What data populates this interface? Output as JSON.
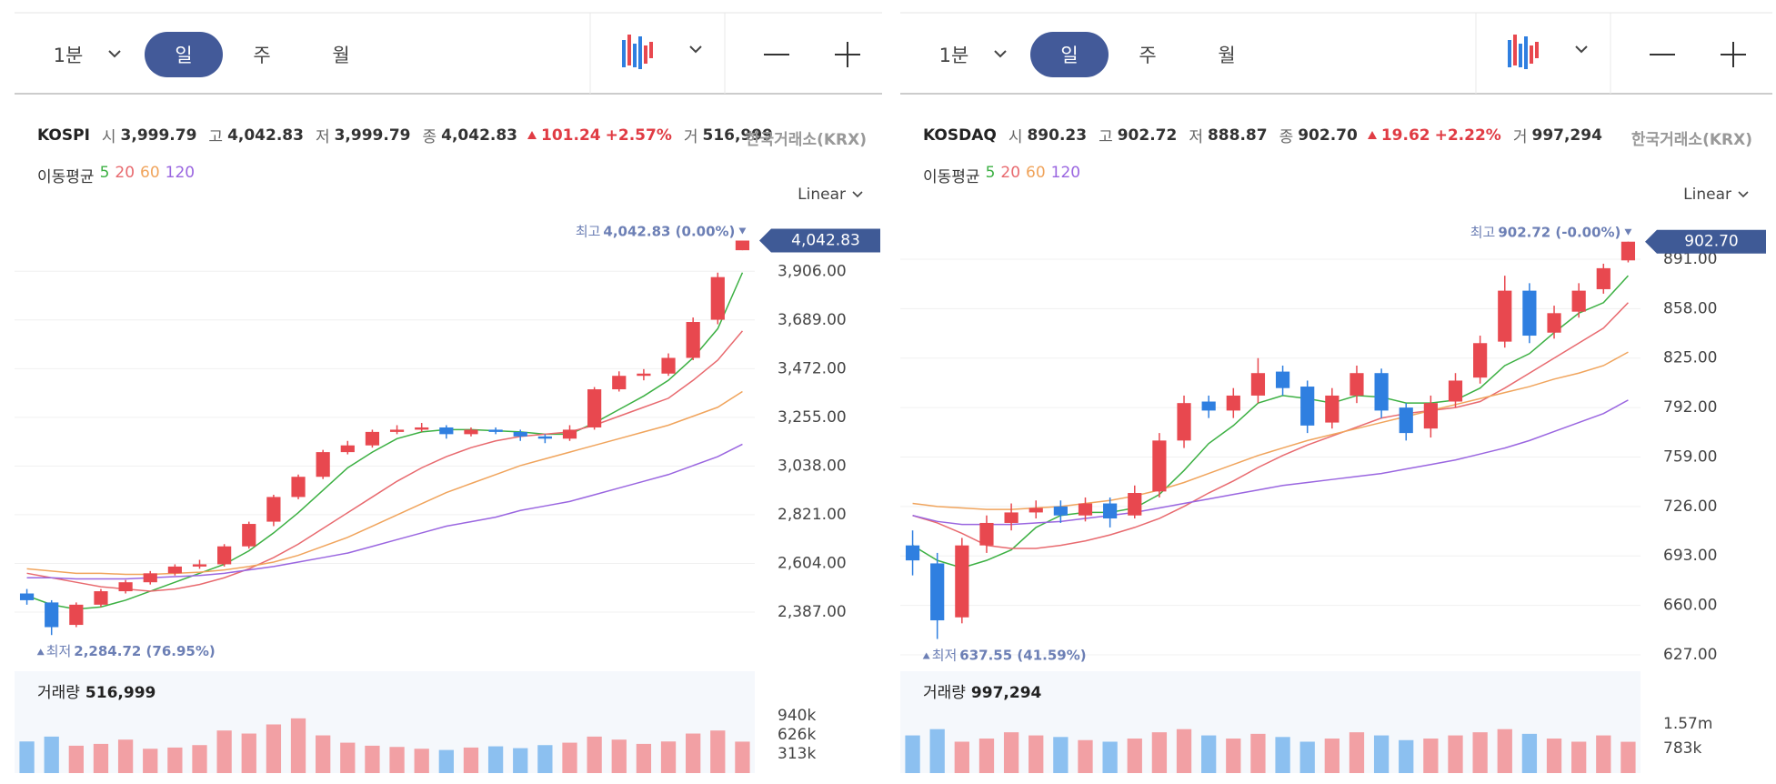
{
  "chart_data": [
    {
      "type": "candlestick",
      "title": "KOSPI",
      "toolbar": [
        "1분",
        "일",
        "주",
        "월"
      ],
      "toolbar_selected": 1,
      "quote": [
        {
          "label": "시",
          "value": "3,999.79"
        },
        {
          "label": "고",
          "value": "4,042.83"
        },
        {
          "label": "저",
          "value": "3,999.79"
        },
        {
          "label": "종",
          "value": "4,042.83"
        }
      ],
      "change": {
        "value": "101.24",
        "percent": "+2.57%"
      },
      "volume_quote": {
        "label": "거",
        "value": "516,999"
      },
      "exchange": "한국거래소(KRX)",
      "ma_title": "이동평균",
      "scale_label": "Linear",
      "high_label": "최고",
      "high_text": "4,042.83 (0.00%)",
      "low_label": "최저",
      "low_text": "2,284.72 (76.95%)",
      "last_price_label": "4,042.83",
      "up_color": "#e8484f",
      "down_color": "#2f7fe0",
      "ylim": [
        2160,
        4130
      ],
      "yticks": [
        {
          "value": 2387,
          "label": "2,387.00"
        },
        {
          "value": 2604,
          "label": "2,604.00"
        },
        {
          "value": 2821,
          "label": "2,821.00"
        },
        {
          "value": 3038,
          "label": "3,038.00"
        },
        {
          "value": 3255,
          "label": "3,255.00"
        },
        {
          "value": 3472,
          "label": "3,472.00"
        },
        {
          "value": 3689,
          "label": "3,689.00"
        },
        {
          "value": 3906,
          "label": "3,906.00"
        }
      ],
      "grid": true,
      "open": [
        2470,
        2430,
        2330,
        2420,
        2480,
        2520,
        2560,
        2590,
        2600,
        2680,
        2790,
        2900,
        2990,
        3100,
        3130,
        3190,
        3200,
        3210,
        3180,
        3200,
        3190,
        3170,
        3160,
        3210,
        3380,
        3440,
        3450,
        3520,
        3690,
        3999.79
      ],
      "high": [
        2490,
        2440,
        2430,
        2490,
        2530,
        2570,
        2600,
        2620,
        2690,
        2790,
        2910,
        3000,
        3110,
        3150,
        3200,
        3220,
        3230,
        3220,
        3210,
        3210,
        3200,
        3180,
        3220,
        3390,
        3460,
        3470,
        3540,
        3700,
        3900,
        4042.83
      ],
      "low": [
        2420,
        2284.72,
        2320,
        2410,
        2470,
        2510,
        2550,
        2580,
        2590,
        2670,
        2770,
        2890,
        2980,
        3090,
        3120,
        3180,
        3190,
        3160,
        3170,
        3180,
        3150,
        3140,
        3150,
        3200,
        3370,
        3420,
        3440,
        3510,
        3670,
        3999.79
      ],
      "close": [
        2440,
        2320,
        2420,
        2480,
        2520,
        2560,
        2590,
        2600,
        2680,
        2780,
        2900,
        2990,
        3100,
        3130,
        3190,
        3200,
        3210,
        3180,
        3200,
        3190,
        3170,
        3160,
        3200,
        3380,
        3440,
        3450,
        3520,
        3680,
        3880,
        4042.83
      ],
      "ma_series": [
        {
          "name": "5",
          "color": "#3cb043",
          "values": [
            2460,
            2420,
            2400,
            2410,
            2440,
            2480,
            2520,
            2560,
            2600,
            2660,
            2740,
            2830,
            2930,
            3030,
            3100,
            3160,
            3190,
            3200,
            3200,
            3195,
            3190,
            3180,
            3180,
            3230,
            3290,
            3350,
            3420,
            3520,
            3650,
            3900
          ]
        },
        {
          "name": "20",
          "color": "#e86a6f",
          "values": [
            2560,
            2540,
            2520,
            2500,
            2490,
            2480,
            2490,
            2510,
            2540,
            2580,
            2630,
            2690,
            2760,
            2830,
            2900,
            2970,
            3030,
            3080,
            3120,
            3150,
            3170,
            3180,
            3190,
            3220,
            3260,
            3300,
            3340,
            3420,
            3510,
            3640
          ]
        },
        {
          "name": "60",
          "color": "#f0a45c",
          "values": [
            2580,
            2570,
            2560,
            2560,
            2555,
            2555,
            2560,
            2565,
            2575,
            2590,
            2610,
            2640,
            2680,
            2720,
            2770,
            2820,
            2870,
            2920,
            2960,
            3000,
            3040,
            3070,
            3100,
            3130,
            3160,
            3190,
            3220,
            3260,
            3300,
            3370
          ]
        },
        {
          "name": "120",
          "color": "#9a66e0",
          "values": [
            2540,
            2540,
            2535,
            2535,
            2535,
            2540,
            2545,
            2550,
            2560,
            2575,
            2590,
            2610,
            2630,
            2650,
            2680,
            2710,
            2740,
            2770,
            2790,
            2810,
            2840,
            2860,
            2880,
            2910,
            2940,
            2970,
            3000,
            3040,
            3080,
            3135
          ]
        }
      ],
      "volume": {
        "title": "거래량",
        "label": "516,999",
        "ylim": [
          0,
          1600000
        ],
        "yticks": [
          {
            "value": 313000,
            "label": "313k"
          },
          {
            "value": 626000,
            "label": "626k"
          },
          {
            "value": 940000,
            "label": "940k"
          }
        ],
        "up_color": "#f2a0a4",
        "down_color": "#8cc0f0",
        "values": [
          520000,
          600000,
          450000,
          480000,
          550000,
          400000,
          420000,
          460000,
          700000,
          650000,
          800000,
          900000,
          620000,
          500000,
          450000,
          430000,
          400000,
          380000,
          420000,
          440000,
          410000,
          460000,
          500000,
          600000,
          550000,
          480000,
          520000,
          650000,
          700000,
          516999
        ]
      }
    },
    {
      "type": "candlestick",
      "title": "KOSDAQ",
      "toolbar": [
        "1분",
        "일",
        "주",
        "월"
      ],
      "toolbar_selected": 1,
      "quote": [
        {
          "label": "시",
          "value": "890.23"
        },
        {
          "label": "고",
          "value": "902.72"
        },
        {
          "label": "저",
          "value": "888.87"
        },
        {
          "label": "종",
          "value": "902.70"
        }
      ],
      "change": {
        "value": "19.62",
        "percent": "+2.22%"
      },
      "volume_quote": {
        "label": "거",
        "value": "997,294"
      },
      "exchange": "한국거래소(KRX)",
      "ma_title": "이동평균",
      "scale_label": "Linear",
      "high_label": "최고",
      "high_text": "902.72 (-0.00%)",
      "low_label": "최저",
      "low_text": "637.55 (41.59%)",
      "last_price_label": "902.70",
      "up_color": "#e8484f",
      "down_color": "#2f7fe0",
      "ylim": [
        621.5,
        916.5
      ],
      "yticks": [
        {
          "value": 627,
          "label": "627.00"
        },
        {
          "value": 660,
          "label": "660.00"
        },
        {
          "value": 693,
          "label": "693.00"
        },
        {
          "value": 726,
          "label": "726.00"
        },
        {
          "value": 759,
          "label": "759.00"
        },
        {
          "value": 792,
          "label": "792.00"
        },
        {
          "value": 825,
          "label": "825.00"
        },
        {
          "value": 858,
          "label": "858.00"
        },
        {
          "value": 891,
          "label": "891.00"
        }
      ],
      "grid": true,
      "open": [
        700,
        688,
        652,
        700,
        715,
        722,
        726,
        720,
        728,
        720,
        736,
        770,
        796,
        790,
        800,
        816,
        806,
        782,
        800,
        815,
        792,
        778,
        796,
        812,
        836,
        870,
        842,
        856,
        871,
        890.23
      ],
      "high": [
        710,
        695,
        705,
        720,
        728,
        730,
        730,
        732,
        732,
        740,
        775,
        800,
        800,
        805,
        825,
        820,
        810,
        805,
        820,
        818,
        795,
        800,
        815,
        840,
        880,
        875,
        860,
        875,
        888,
        902.72
      ],
      "low": [
        680,
        637.55,
        648,
        695,
        710,
        718,
        715,
        716,
        712,
        718,
        732,
        765,
        785,
        785,
        795,
        800,
        775,
        778,
        795,
        785,
        770,
        772,
        792,
        808,
        832,
        835,
        838,
        852,
        868,
        888.87
      ],
      "close": [
        690,
        650,
        700,
        715,
        722,
        725,
        720,
        728,
        718,
        735,
        770,
        795,
        790,
        800,
        815,
        805,
        780,
        800,
        815,
        790,
        775,
        795,
        810,
        835,
        870,
        840,
        855,
        870,
        885,
        902.7
      ],
      "ma_series": [
        {
          "name": "5",
          "color": "#3cb043",
          "values": [
            700,
            690,
            685,
            690,
            697,
            712,
            720,
            722,
            722,
            725,
            734,
            750,
            768,
            780,
            795,
            800,
            798,
            795,
            800,
            799,
            795,
            795,
            797,
            805,
            820,
            828,
            842,
            855,
            862,
            880
          ]
        },
        {
          "name": "20",
          "color": "#e86a6f",
          "values": [
            720,
            715,
            708,
            700,
            698,
            698,
            700,
            703,
            707,
            712,
            718,
            726,
            735,
            743,
            752,
            760,
            767,
            773,
            779,
            785,
            788,
            790,
            792,
            796,
            805,
            815,
            825,
            835,
            845,
            862
          ]
        },
        {
          "name": "60",
          "color": "#f0a45c",
          "values": [
            728,
            726,
            725,
            724,
            724,
            725,
            726,
            728,
            730,
            733,
            737,
            742,
            748,
            754,
            760,
            765,
            770,
            774,
            778,
            782,
            786,
            790,
            794,
            798,
            802,
            806,
            811,
            815,
            820,
            829
          ]
        },
        {
          "name": "120",
          "color": "#9a66e0",
          "values": [
            720,
            716,
            714,
            714,
            714,
            715,
            716,
            718,
            720,
            722,
            725,
            728,
            731,
            734,
            737,
            740,
            742,
            744,
            746,
            748,
            751,
            754,
            757,
            761,
            765,
            770,
            776,
            782,
            788,
            797
          ]
        }
      ],
      "volume": {
        "title": "거래량",
        "label": "997,294",
        "ylim": [
          0,
          3100000
        ],
        "yticks": [
          {
            "value": 783000,
            "label": "783k"
          },
          {
            "value": 1570000,
            "label": "1.57m"
          }
        ],
        "up_color": "#f2a0a4",
        "down_color": "#8cc0f0",
        "values": [
          1200000,
          1400000,
          1000000,
          1100000,
          1300000,
          1200000,
          1150000,
          1050000,
          1000000,
          1100000,
          1300000,
          1400000,
          1200000,
          1100000,
          1250000,
          1150000,
          1000000,
          1100000,
          1300000,
          1200000,
          1050000,
          1100000,
          1200000,
          1300000,
          1400000,
          1250000,
          1100000,
          1000000,
          1200000,
          997294
        ]
      }
    }
  ]
}
